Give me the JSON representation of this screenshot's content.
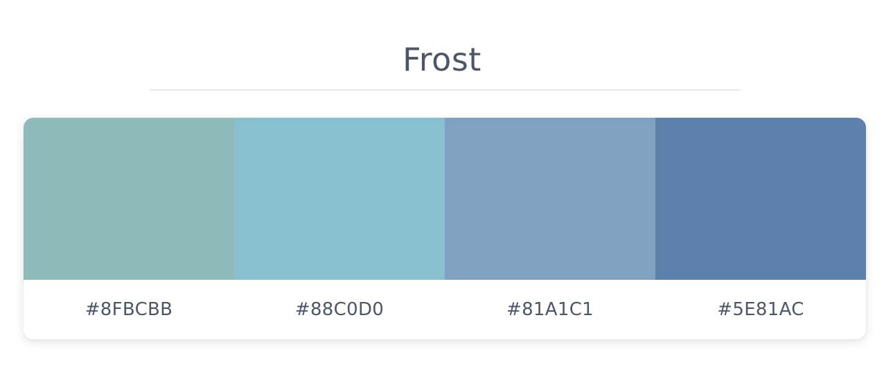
{
  "palette": {
    "title": "Frost",
    "swatches": [
      {
        "hex": "#8FBCBB",
        "color": "#8FBCBB"
      },
      {
        "hex": "#88C0D0",
        "color": "#88C0D0"
      },
      {
        "hex": "#81A1C1",
        "color": "#81A1C1"
      },
      {
        "hex": "#5E81AC",
        "color": "#5E81AC"
      }
    ]
  },
  "colors": {
    "text": "#4C566A",
    "divider": "#E5E9F0",
    "background": "#FFFFFF"
  }
}
